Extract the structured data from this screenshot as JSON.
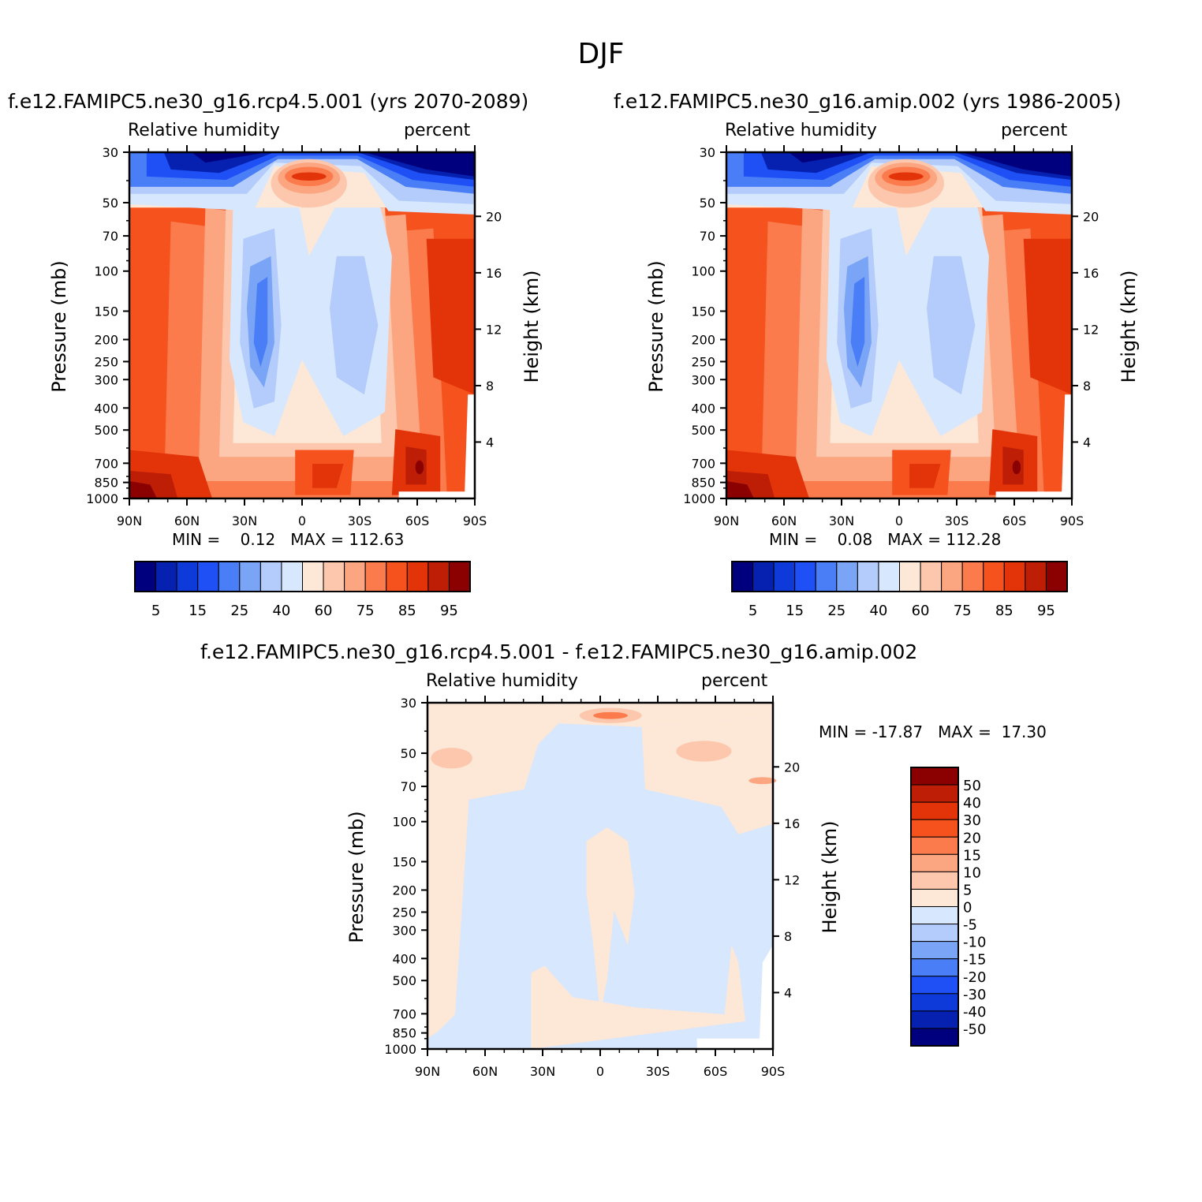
{
  "figure": {
    "title": "DJF"
  },
  "colors": {
    "levels": [
      "#00007f",
      "#0621b0",
      "#0d3ad9",
      "#1e50f5",
      "#4a7ef7",
      "#7aa4f6",
      "#b3ccfb",
      "#d7e7fd",
      "#fde7d7",
      "#fcc7ac",
      "#fca581",
      "#fb7b4d",
      "#f5521e",
      "#e23408",
      "#bf1e06",
      "#8b0000"
    ]
  },
  "chart_data": [
    {
      "id": "rcp45",
      "type": "heatmap",
      "title": "f.e12.FAMIPC5.ne30_g16.rcp4.5.001 (yrs 2070-2089)",
      "variable": "Relative humidity",
      "units": "percent",
      "ylabel": "Pressure (mb)",
      "ylabel_right": "Height (km)",
      "x_ticks": [
        "90N",
        "60N",
        "30N",
        "0",
        "30S",
        "60S",
        "90S"
      ],
      "x_values": [
        90,
        60,
        30,
        0,
        -30,
        -60,
        -90
      ],
      "y_ticks": [
        30,
        50,
        70,
        100,
        150,
        200,
        250,
        300,
        400,
        500,
        700,
        850,
        1000
      ],
      "height_ticks": [
        20,
        16,
        12,
        8,
        4
      ],
      "ylim": [
        30,
        1000
      ],
      "min_label": "MIN =    0.12   MAX = 112.63",
      "min": 0.12,
      "max": 112.63,
      "colorbar_labels": [
        "5",
        "15",
        "25",
        "40",
        "60",
        "75",
        "85",
        "95"
      ]
    },
    {
      "id": "amip",
      "type": "heatmap",
      "title": "f.e12.FAMIPC5.ne30_g16.amip.002 (yrs 1986-2005)",
      "variable": "Relative humidity",
      "units": "percent",
      "ylabel": "Pressure (mb)",
      "ylabel_right": "Height (km)",
      "x_ticks": [
        "90N",
        "60N",
        "30N",
        "0",
        "30S",
        "60S",
        "90S"
      ],
      "x_values": [
        90,
        60,
        30,
        0,
        -30,
        -60,
        -90
      ],
      "y_ticks": [
        30,
        50,
        70,
        100,
        150,
        200,
        250,
        300,
        400,
        500,
        700,
        850,
        1000
      ],
      "height_ticks": [
        20,
        16,
        12,
        8,
        4
      ],
      "ylim": [
        30,
        1000
      ],
      "min_label": "MIN =    0.08   MAX = 112.28",
      "min": 0.08,
      "max": 112.28,
      "colorbar_labels": [
        "5",
        "15",
        "25",
        "40",
        "60",
        "75",
        "85",
        "95"
      ]
    },
    {
      "id": "diff",
      "type": "heatmap",
      "title": "f.e12.FAMIPC5.ne30_g16.rcp4.5.001 - f.e12.FAMIPC5.ne30_g16.amip.002",
      "variable": "Relative humidity",
      "units": "percent",
      "ylabel": "Pressure (mb)",
      "ylabel_right": "Height (km)",
      "x_ticks": [
        "90N",
        "60N",
        "30N",
        "0",
        "30S",
        "60S",
        "90S"
      ],
      "x_values": [
        90,
        60,
        30,
        0,
        -30,
        -60,
        -90
      ],
      "y_ticks": [
        30,
        50,
        70,
        100,
        150,
        200,
        250,
        300,
        400,
        500,
        700,
        850,
        1000
      ],
      "height_ticks": [
        20,
        16,
        12,
        8,
        4
      ],
      "ylim": [
        30,
        1000
      ],
      "min_label": "MIN = -17.87   MAX =  17.30",
      "min": -17.87,
      "max": 17.3,
      "colorbar_labels": [
        "50",
        "40",
        "30",
        "20",
        "15",
        "10",
        "5",
        "0",
        "-5",
        "-10",
        "-15",
        "-20",
        "-30",
        "-40",
        "-50"
      ]
    }
  ]
}
